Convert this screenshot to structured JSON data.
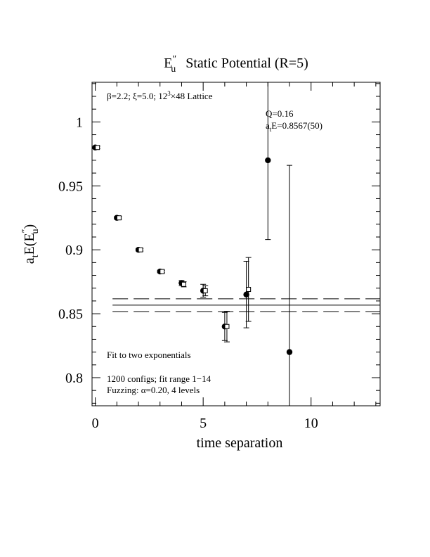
{
  "chart_data": {
    "type": "errorbar",
    "title": [
      "E",
      "″",
      "u",
      "Static Potential (R=5)"
    ],
    "xlabel": "time separation",
    "ylabel": [
      "a",
      "t",
      "E(E",
      "″",
      "u",
      ")"
    ],
    "annotations": {
      "lattice": [
        "β=2.2; ξ=5.0; 12",
        "3",
        "×48 Lattice"
      ],
      "q": "Q=0.16",
      "fit_result": [
        "a",
        "t",
        "E=0.8567(50)"
      ],
      "fit_type": "Fit to two exponentials",
      "configs": "1200 configs; fit range 1−14",
      "fuzzing": "Fuzzing: α=0.20, 4 levels"
    },
    "xlim": [
      -0.15,
      13.2
    ],
    "ylim": [
      0.778,
      1.031
    ],
    "xticks": [
      0,
      5,
      10
    ],
    "yticks": [
      0.8,
      0.85,
      0.9,
      0.95,
      1
    ],
    "xminor_ticks": [
      1,
      2,
      3,
      4,
      6,
      7,
      8,
      9,
      11,
      12,
      13
    ],
    "yminor_ticks": [
      0.78,
      0.79,
      0.81,
      0.82,
      0.83,
      0.84,
      0.86,
      0.87,
      0.88,
      0.89,
      0.91,
      0.92,
      0.93,
      0.94,
      0.96,
      0.97,
      0.98,
      0.99,
      1.01,
      1.02,
      1.03
    ],
    "fit_value": 0.8567,
    "fit_error": 0.005,
    "series": [
      {
        "marker": "circle",
        "color": "#000000",
        "x": [
          0,
          1,
          2,
          3,
          4,
          5,
          6,
          7,
          8,
          9
        ],
        "values": [
          0.98,
          0.925,
          0.9,
          0.883,
          0.874,
          0.868,
          0.84,
          0.865,
          0.97,
          0.82
        ],
        "errors": [
          0.001,
          0.001,
          0.001,
          0.001,
          0.002,
          0.005,
          0.011,
          0.026,
          0.062,
          0.146
        ]
      },
      {
        "marker": "square",
        "color": "#000000",
        "x": [
          0.1,
          1.1,
          2.1,
          3.1,
          4.1,
          5.1,
          6.1,
          7.1
        ],
        "values": [
          0.98,
          0.925,
          0.9,
          0.883,
          0.873,
          0.868,
          0.84,
          0.869
        ],
        "errors": [
          0.001,
          0.001,
          0.001,
          0.001,
          0.002,
          0.004,
          0.012,
          0.025
        ]
      }
    ]
  }
}
